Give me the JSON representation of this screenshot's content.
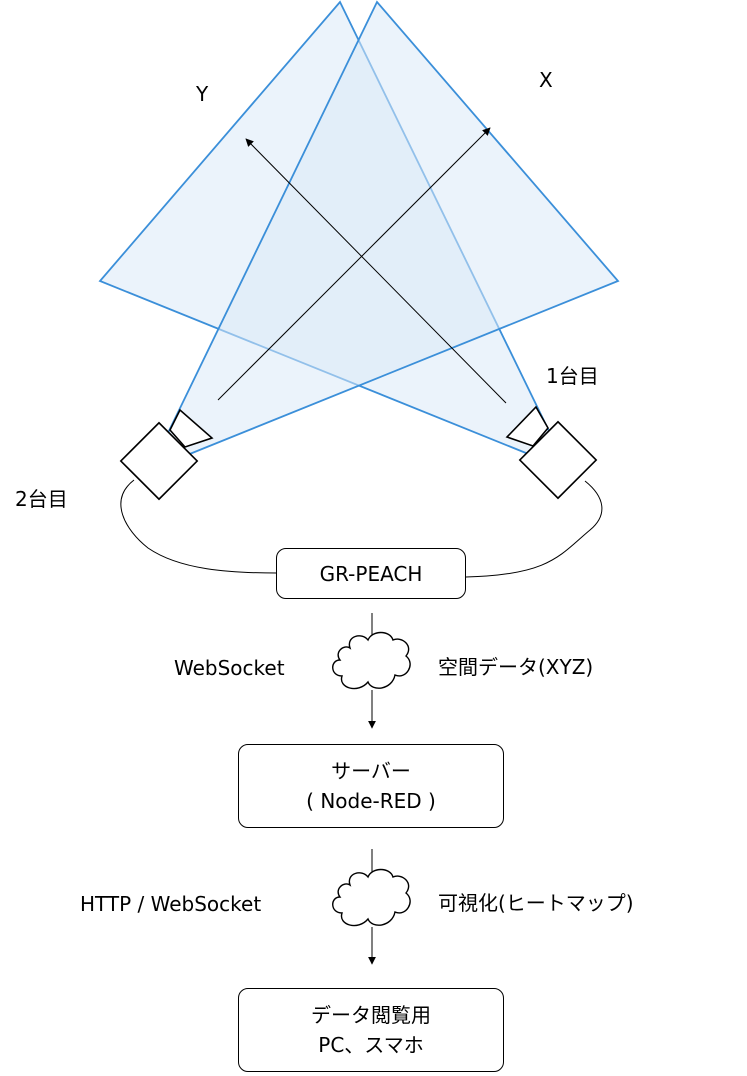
{
  "axes": {
    "x_label": "X",
    "y_label": "Y"
  },
  "cameras": {
    "camera1_label": "1台目",
    "camera2_label": "2台目"
  },
  "nodes": {
    "gr_peach": "GR-PEACH",
    "server_line1": "サーバー",
    "server_line2": "( Node-RED )",
    "client_line1": "データ閲覧用",
    "client_line2": "PC、スマホ"
  },
  "links": {
    "link1_protocol": "WebSocket",
    "link1_payload": "空間データ(XYZ)",
    "link2_protocol": "HTTP / WebSocket",
    "link2_payload": "可視化(ヒートマップ)"
  },
  "colors": {
    "field_stroke": "#3b8fd9",
    "field_fill": "#dbe9f7",
    "line": "#000000"
  }
}
